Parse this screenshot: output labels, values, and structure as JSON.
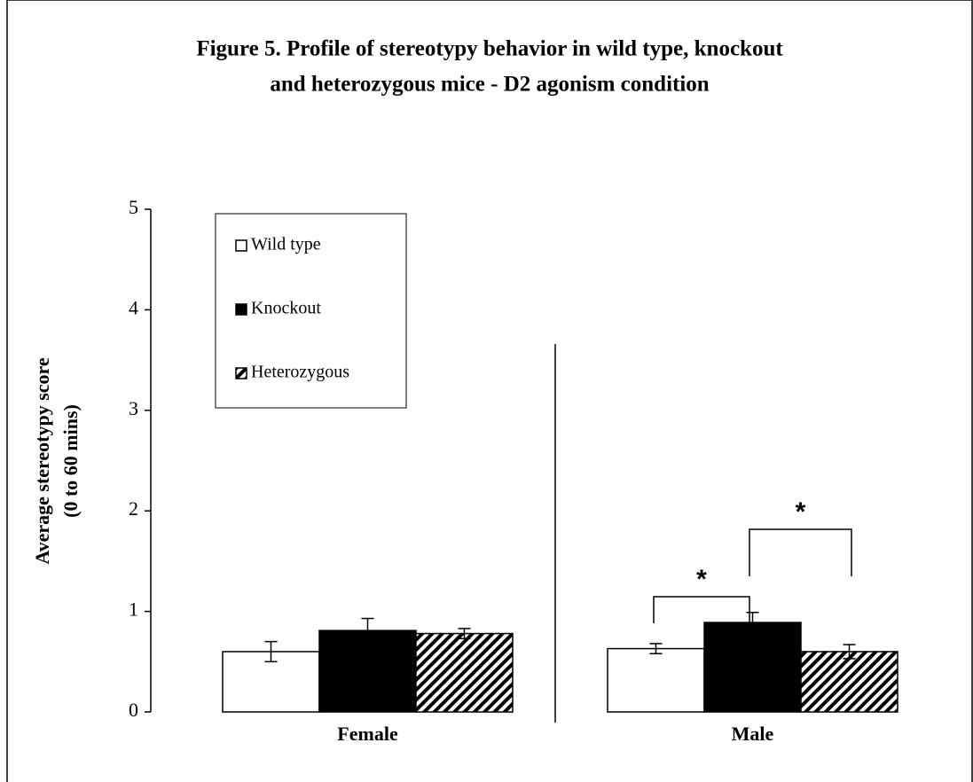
{
  "chart_data": {
    "type": "bar",
    "title": [
      "Figure 5. Profile of stereotypy behavior in wild type, knockout",
      "and heterozygous mice - D2 agonism condition"
    ],
    "ylabel": [
      "Average stereotypy score",
      "(0 to 60 mins)"
    ],
    "categories": [
      "Female",
      "Male"
    ],
    "series": [
      {
        "name": "Wild type",
        "color": "#ffffff",
        "values": [
          0.6,
          0.63
        ],
        "errors": [
          0.1,
          0.05
        ]
      },
      {
        "name": "Knockout",
        "color": "#000000",
        "values": [
          0.81,
          0.89
        ],
        "errors": [
          0.12,
          0.1
        ]
      },
      {
        "name": "Heterozygous",
        "color": "#000000",
        "pattern": "hatch",
        "values": [
          0.78,
          0.6
        ],
        "errors": [
          0.05,
          0.07
        ]
      }
    ],
    "annotations": [
      "*",
      "*"
    ],
    "ylim": [
      0,
      5
    ],
    "yticks": [
      0,
      1,
      2,
      3,
      4,
      5
    ],
    "grid": false,
    "legend": "upper left"
  }
}
